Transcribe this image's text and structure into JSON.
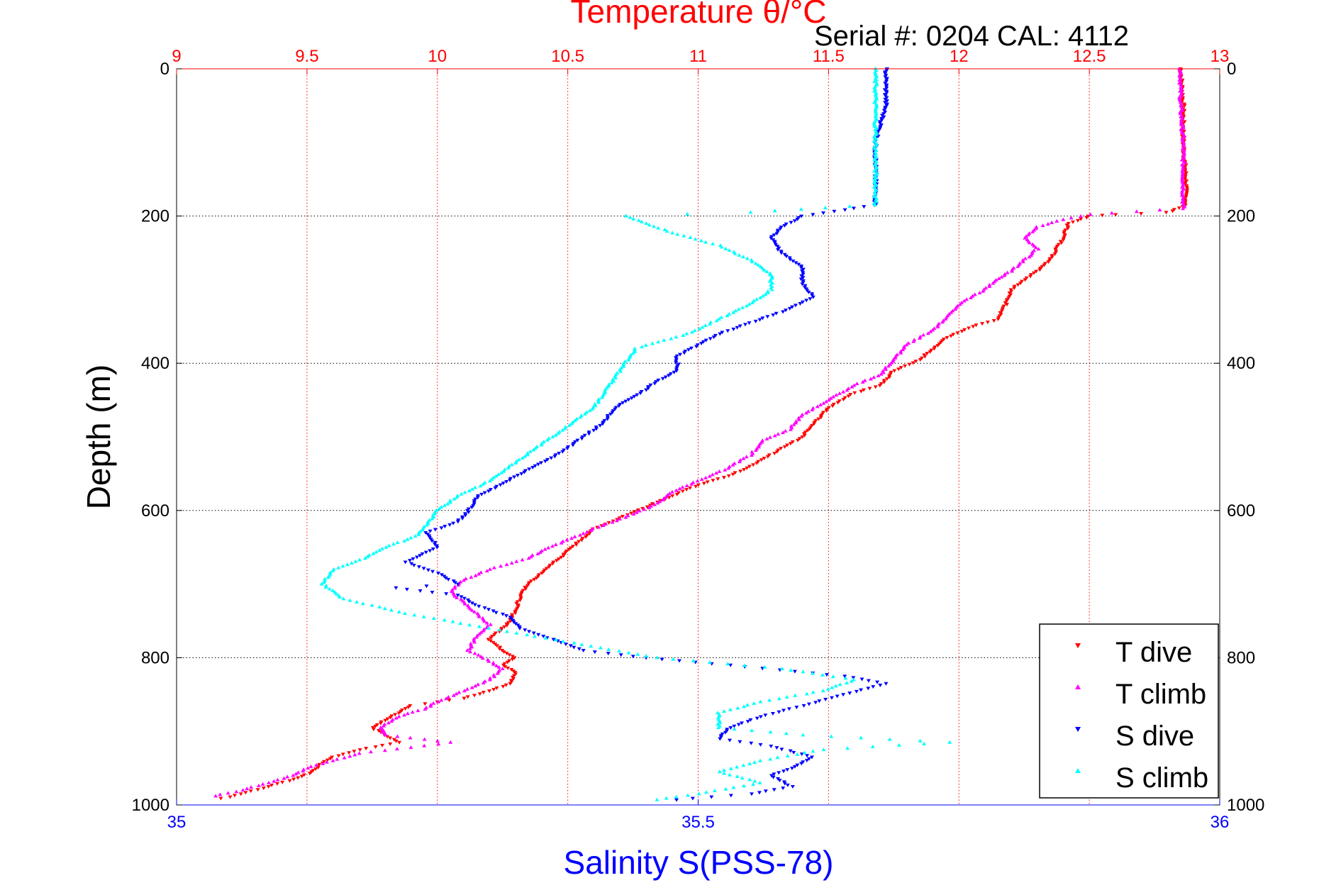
{
  "chart_data": {
    "type": "scatter",
    "title": "Temperature θ/°C",
    "subtitle": "Serial #: 0204  CAL: 4112",
    "xlabel": "Salinity S(PSS-78)",
    "ylabel": "Depth (m)",
    "top_axis": {
      "range": [
        9,
        13
      ],
      "ticks": [
        9,
        9.5,
        10,
        10.5,
        11,
        11.5,
        12,
        12.5,
        13
      ],
      "tick_labels": [
        "9",
        "9.5",
        "10",
        "10.5",
        "11",
        "11.5",
        "12",
        "12.5",
        "13"
      ],
      "color": "#ff0000"
    },
    "bottom_axis": {
      "range": [
        35,
        36
      ],
      "ticks": [
        35,
        35.5,
        36
      ],
      "tick_labels": [
        "35",
        "35.5",
        "36"
      ],
      "color": "#0000ff"
    },
    "y_axis": {
      "range": [
        0,
        1000
      ],
      "reversed": true,
      "ticks": [
        0,
        200,
        400,
        600,
        800,
        1000
      ],
      "tick_labels": [
        "0",
        "200",
        "400",
        "600",
        "800",
        "1000"
      ]
    },
    "grid": true,
    "legend": {
      "position": "bottom-right"
    },
    "series": [
      {
        "name": "T dive",
        "axis": "top",
        "color": "#ff0000",
        "marker": "triangle-down",
        "points": [
          [
            12.85,
            0
          ],
          [
            12.86,
            50
          ],
          [
            12.86,
            100
          ],
          [
            12.87,
            150
          ],
          [
            12.87,
            185
          ],
          [
            12.8,
            195
          ],
          [
            12.6,
            198
          ],
          [
            12.5,
            200
          ],
          [
            12.42,
            210
          ],
          [
            12.4,
            230
          ],
          [
            12.35,
            260
          ],
          [
            12.3,
            275
          ],
          [
            12.2,
            300
          ],
          [
            12.18,
            320
          ],
          [
            12.15,
            340
          ],
          [
            12.05,
            350
          ],
          [
            11.95,
            365
          ],
          [
            11.9,
            380
          ],
          [
            11.85,
            395
          ],
          [
            11.75,
            410
          ],
          [
            11.7,
            430
          ],
          [
            11.6,
            440
          ],
          [
            11.5,
            460
          ],
          [
            11.45,
            480
          ],
          [
            11.4,
            500
          ],
          [
            11.3,
            520
          ],
          [
            11.2,
            540
          ],
          [
            11.1,
            555
          ],
          [
            11.0,
            565
          ],
          [
            10.9,
            580
          ],
          [
            10.8,
            595
          ],
          [
            10.7,
            610
          ],
          [
            10.6,
            625
          ],
          [
            10.55,
            640
          ],
          [
            10.5,
            655
          ],
          [
            10.45,
            670
          ],
          [
            10.4,
            685
          ],
          [
            10.35,
            700
          ],
          [
            10.32,
            715
          ],
          [
            10.3,
            735
          ],
          [
            10.28,
            750
          ],
          [
            10.25,
            760
          ],
          [
            10.2,
            775
          ],
          [
            10.25,
            790
          ],
          [
            10.3,
            800
          ],
          [
            10.25,
            810
          ],
          [
            10.3,
            820
          ],
          [
            10.28,
            835
          ],
          [
            10.2,
            845
          ],
          [
            10.1,
            855
          ],
          [
            10.0,
            860
          ],
          [
            9.9,
            865
          ],
          [
            9.85,
            875
          ],
          [
            9.8,
            885
          ],
          [
            9.75,
            895
          ],
          [
            9.8,
            905
          ],
          [
            9.85,
            915
          ],
          [
            9.7,
            925
          ],
          [
            9.6,
            935
          ],
          [
            9.55,
            945
          ],
          [
            9.52,
            955
          ],
          [
            9.45,
            965
          ],
          [
            9.35,
            975
          ],
          [
            9.25,
            985
          ],
          [
            9.15,
            993
          ]
        ]
      },
      {
        "name": "T climb",
        "axis": "top",
        "color": "#ff00ff",
        "marker": "triangle-up",
        "points": [
          [
            12.85,
            0
          ],
          [
            12.85,
            50
          ],
          [
            12.86,
            100
          ],
          [
            12.86,
            150
          ],
          [
            12.86,
            190
          ],
          [
            12.5,
            198
          ],
          [
            12.4,
            205
          ],
          [
            12.3,
            215
          ],
          [
            12.25,
            230
          ],
          [
            12.3,
            245
          ],
          [
            12.25,
            260
          ],
          [
            12.2,
            275
          ],
          [
            12.15,
            285
          ],
          [
            12.1,
            300
          ],
          [
            12.0,
            320
          ],
          [
            11.95,
            340
          ],
          [
            11.9,
            355
          ],
          [
            11.8,
            375
          ],
          [
            11.75,
            395
          ],
          [
            11.7,
            415
          ],
          [
            11.6,
            430
          ],
          [
            11.5,
            450
          ],
          [
            11.4,
            470
          ],
          [
            11.35,
            490
          ],
          [
            11.25,
            505
          ],
          [
            11.2,
            525
          ],
          [
            11.1,
            545
          ],
          [
            11.0,
            560
          ],
          [
            10.9,
            575
          ],
          [
            10.85,
            590
          ],
          [
            10.75,
            605
          ],
          [
            10.6,
            625
          ],
          [
            10.5,
            640
          ],
          [
            10.4,
            655
          ],
          [
            10.35,
            665
          ],
          [
            10.2,
            680
          ],
          [
            10.1,
            695
          ],
          [
            10.05,
            710
          ],
          [
            10.1,
            725
          ],
          [
            10.15,
            740
          ],
          [
            10.2,
            755
          ],
          [
            10.15,
            770
          ],
          [
            10.12,
            790
          ],
          [
            10.2,
            805
          ],
          [
            10.25,
            815
          ],
          [
            10.2,
            830
          ],
          [
            10.1,
            845
          ],
          [
            10.0,
            860
          ],
          [
            9.95,
            870
          ],
          [
            9.85,
            880
          ],
          [
            9.78,
            895
          ],
          [
            9.8,
            905
          ],
          [
            10.05,
            915
          ],
          [
            9.9,
            922
          ],
          [
            9.7,
            930
          ],
          [
            9.6,
            940
          ],
          [
            9.5,
            950
          ],
          [
            9.45,
            960
          ],
          [
            9.35,
            970
          ],
          [
            9.25,
            980
          ],
          [
            9.12,
            990
          ]
        ]
      },
      {
        "name": "S dive",
        "axis": "bottom",
        "color": "#0000ff",
        "marker": "triangle-down",
        "points": [
          [
            35.68,
            0
          ],
          [
            35.68,
            50
          ],
          [
            35.67,
            100
          ],
          [
            35.67,
            150
          ],
          [
            35.67,
            185
          ],
          [
            35.6,
            200
          ],
          [
            35.58,
            215
          ],
          [
            35.57,
            230
          ],
          [
            35.58,
            250
          ],
          [
            35.6,
            270
          ],
          [
            35.6,
            290
          ],
          [
            35.61,
            310
          ],
          [
            35.58,
            330
          ],
          [
            35.55,
            345
          ],
          [
            35.52,
            360
          ],
          [
            35.5,
            375
          ],
          [
            35.48,
            390
          ],
          [
            35.48,
            410
          ],
          [
            35.46,
            425
          ],
          [
            35.44,
            445
          ],
          [
            35.42,
            460
          ],
          [
            35.41,
            480
          ],
          [
            35.39,
            500
          ],
          [
            35.37,
            520
          ],
          [
            35.35,
            535
          ],
          [
            35.33,
            550
          ],
          [
            35.31,
            565
          ],
          [
            35.29,
            580
          ],
          [
            35.28,
            600
          ],
          [
            35.27,
            615
          ],
          [
            35.24,
            630
          ],
          [
            35.25,
            650
          ],
          [
            35.22,
            670
          ],
          [
            35.25,
            685
          ],
          [
            35.27,
            700
          ],
          [
            35.21,
            705
          ],
          [
            35.27,
            715
          ],
          [
            35.29,
            730
          ],
          [
            35.32,
            745
          ],
          [
            35.33,
            760
          ],
          [
            35.36,
            775
          ],
          [
            35.39,
            790
          ],
          [
            35.45,
            800
          ],
          [
            35.53,
            810
          ],
          [
            35.64,
            825
          ],
          [
            35.68,
            835
          ],
          [
            35.64,
            850
          ],
          [
            35.6,
            865
          ],
          [
            35.56,
            880
          ],
          [
            35.53,
            895
          ],
          [
            35.52,
            910
          ],
          [
            35.57,
            920
          ],
          [
            35.61,
            935
          ],
          [
            35.59,
            950
          ],
          [
            35.57,
            960
          ],
          [
            35.59,
            975
          ],
          [
            35.55,
            985
          ],
          [
            35.46,
            995
          ]
        ]
      },
      {
        "name": "S climb",
        "axis": "bottom",
        "color": "#00ffff",
        "marker": "triangle-up",
        "points": [
          [
            35.67,
            0
          ],
          [
            35.67,
            50
          ],
          [
            35.67,
            100
          ],
          [
            35.67,
            150
          ],
          [
            35.67,
            185
          ],
          [
            35.55,
            195
          ],
          [
            35.43,
            200
          ],
          [
            35.45,
            210
          ],
          [
            35.48,
            225
          ],
          [
            35.52,
            240
          ],
          [
            35.55,
            260
          ],
          [
            35.57,
            280
          ],
          [
            35.57,
            300
          ],
          [
            35.55,
            320
          ],
          [
            35.52,
            340
          ],
          [
            35.49,
            360
          ],
          [
            35.44,
            380
          ],
          [
            35.43,
            400
          ],
          [
            35.42,
            420
          ],
          [
            35.41,
            440
          ],
          [
            35.4,
            460
          ],
          [
            35.38,
            480
          ],
          [
            35.36,
            500
          ],
          [
            35.34,
            520
          ],
          [
            35.32,
            540
          ],
          [
            35.3,
            560
          ],
          [
            35.27,
            580
          ],
          [
            35.25,
            600
          ],
          [
            35.24,
            620
          ],
          [
            35.23,
            635
          ],
          [
            35.2,
            650
          ],
          [
            35.18,
            665
          ],
          [
            35.15,
            680
          ],
          [
            35.14,
            700
          ],
          [
            35.16,
            720
          ],
          [
            35.22,
            740
          ],
          [
            35.3,
            760
          ],
          [
            35.38,
            780
          ],
          [
            35.46,
            800
          ],
          [
            35.58,
            815
          ],
          [
            35.65,
            830
          ],
          [
            35.62,
            845
          ],
          [
            35.56,
            860
          ],
          [
            35.52,
            875
          ],
          [
            35.52,
            895
          ],
          [
            35.6,
            905
          ],
          [
            35.74,
            915
          ],
          [
            35.62,
            925
          ],
          [
            35.56,
            940
          ],
          [
            35.52,
            955
          ],
          [
            35.56,
            970
          ],
          [
            35.5,
            985
          ],
          [
            35.45,
            995
          ]
        ]
      }
    ]
  }
}
